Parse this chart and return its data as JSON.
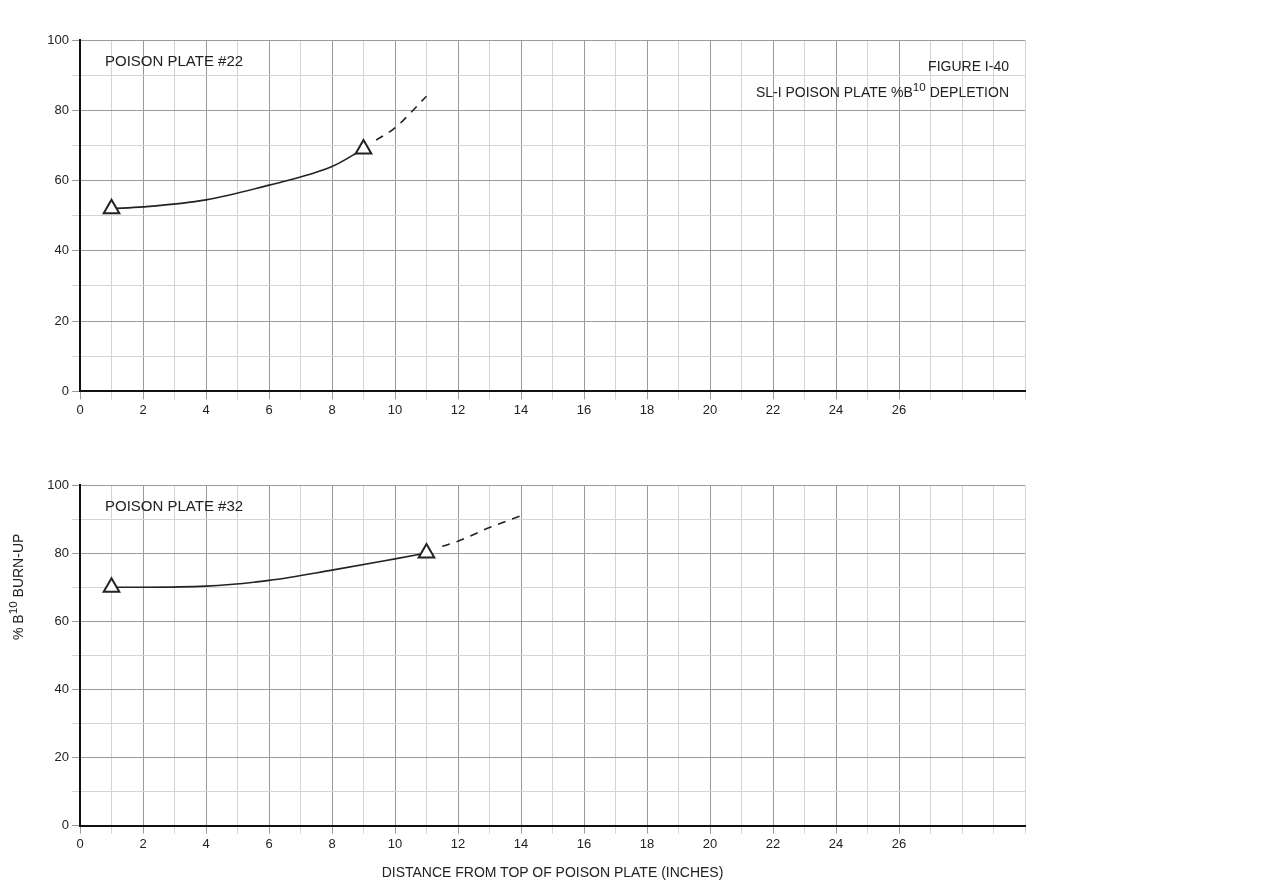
{
  "chart_data": [
    {
      "type": "line",
      "title": "FIGURE I-40",
      "subtitle": "SL-I POISON PLATE %B$^{10}$ DEPLETION",
      "annotations": [
        "POISON PLATE #22"
      ],
      "xlim": [
        0,
        30
      ],
      "ylim": [
        0,
        100
      ],
      "xticks": [
        0,
        {
          "value": 1,
          "label": null
        },
        2,
        {
          "value": 3,
          "label": null
        },
        4,
        {
          "value": 5,
          "label": null
        },
        6,
        {
          "value": 7,
          "label": null
        },
        8,
        {
          "value": 9,
          "label": null
        },
        10,
        {
          "value": 11,
          "label": null
        },
        12,
        {
          "value": 13,
          "label": null
        },
        14,
        {
          "value": 15,
          "label": null
        },
        16,
        {
          "value": 17,
          "label": null
        },
        18,
        {
          "value": 19,
          "label": null
        },
        20,
        {
          "value": 21,
          "label": null
        },
        22,
        {
          "value": 23,
          "label": null
        },
        24,
        {
          "value": 25,
          "label": null
        },
        26,
        {
          "value": 27,
          "label": null
        },
        {
          "value": 28,
          "label": null
        },
        {
          "value": 29,
          "label": null
        },
        {
          "value": 30,
          "label": null
        }
      ],
      "yticks": [
        0,
        {
          "value": 10,
          "label": null
        },
        20,
        {
          "value": 30,
          "label": null
        },
        40,
        {
          "value": 50,
          "label": null
        },
        60,
        {
          "value": 70,
          "label": null
        },
        80,
        {
          "value": 90,
          "label": null
        },
        100
      ],
      "grid": true,
      "legend": false,
      "series": [
        {
          "type": "line",
          "color": "#222222",
          "line_style": "solid",
          "x": [
            1,
            2,
            4,
            6,
            8,
            9
          ],
          "values": [
            52,
            52.5,
            54.5,
            58.7,
            64,
            69
          ]
        },
        {
          "type": "line",
          "color": "#222222",
          "line_style": "dashed",
          "x": [
            9.4,
            10,
            11
          ],
          "values": [
            71.5,
            75,
            84
          ]
        },
        {
          "type": "scatter",
          "color": "#222222",
          "marker": "triangle",
          "x": [
            1,
            9
          ],
          "values": [
            52,
            69
          ]
        }
      ]
    },
    {
      "type": "line",
      "ylabel": "% B$^{10}$ BURN-UP",
      "xlabel": "DISTANCE FROM TOP OF POISON PLATE (INCHES)",
      "annotations": [
        "POISON PLATE #32"
      ],
      "xlim": [
        0,
        30
      ],
      "ylim": [
        0,
        100
      ],
      "xticks": [
        0,
        {
          "value": 1,
          "label": null
        },
        2,
        {
          "value": 3,
          "label": null
        },
        4,
        {
          "value": 5,
          "label": null
        },
        6,
        {
          "value": 7,
          "label": null
        },
        8,
        {
          "value": 9,
          "label": null
        },
        10,
        {
          "value": 11,
          "label": null
        },
        12,
        {
          "value": 13,
          "label": null
        },
        14,
        {
          "value": 15,
          "label": null
        },
        16,
        {
          "value": 17,
          "label": null
        },
        18,
        {
          "value": 19,
          "label": null
        },
        20,
        {
          "value": 21,
          "label": null
        },
        22,
        {
          "value": 23,
          "label": null
        },
        24,
        {
          "value": 25,
          "label": null
        },
        26,
        {
          "value": 27,
          "label": null
        },
        {
          "value": 28,
          "label": null
        },
        {
          "value": 29,
          "label": null
        },
        {
          "value": 30,
          "label": null
        }
      ],
      "yticks": [
        0,
        {
          "value": 10,
          "label": null
        },
        20,
        {
          "value": 30,
          "label": null
        },
        40,
        {
          "value": 50,
          "label": null
        },
        60,
        {
          "value": 70,
          "label": null
        },
        80,
        {
          "value": 90,
          "label": null
        },
        100
      ],
      "grid": true,
      "legend": false,
      "series": [
        {
          "type": "line",
          "color": "#222222",
          "line_style": "solid",
          "x": [
            1,
            2,
            4,
            6,
            8,
            10,
            11
          ],
          "values": [
            70,
            70,
            70.3,
            72,
            75,
            78.3,
            80
          ]
        },
        {
          "type": "line",
          "color": "#222222",
          "line_style": "dashed",
          "x": [
            11.5,
            12,
            13,
            14
          ],
          "values": [
            82,
            83.5,
            87.5,
            91
          ]
        },
        {
          "type": "scatter",
          "color": "#222222",
          "marker": "triangle",
          "x": [
            1,
            11
          ],
          "values": [
            70,
            80
          ]
        }
      ]
    }
  ]
}
